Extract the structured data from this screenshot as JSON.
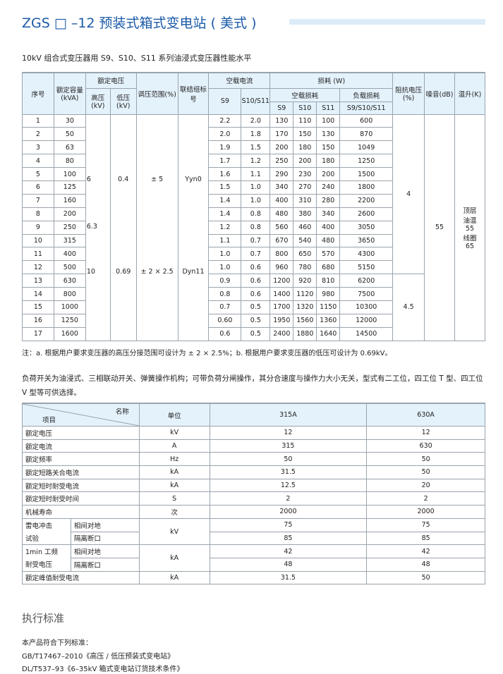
{
  "title": "ZGS □ –12 预装式箱式变电站 ( 美式 )",
  "subtitle": "10kV 组合式变压器用 S9、S10、S11 系列油浸式变压器性能水平",
  "table1": {
    "headers": {
      "no": "序号",
      "capacity": "额定容量(kVA)",
      "rated_voltage": "额定电压",
      "hv": "高压(kV)",
      "lv": "低压(kV)",
      "tap": "调压范围(%)",
      "conn": "联结组标号",
      "noload_current": "空载电流",
      "s9": "S9",
      "s10s11": "S10/S11",
      "loss": "损耗 (W)",
      "noload_loss": "空载损耗",
      "load_loss": "负载损耗",
      "s10": "S10",
      "s11": "S11",
      "s9s10s11": "S9/S10/S11",
      "impedance": "阻抗电压(%)",
      "noise": "噪音(dB)",
      "temp": "温升(K)"
    },
    "rows": [
      [
        "1",
        "30",
        "2.2",
        "2.0",
        "130",
        "110",
        "100",
        "600"
      ],
      [
        "2",
        "50",
        "2.0",
        "1.8",
        "170",
        "150",
        "130",
        "870"
      ],
      [
        "3",
        "63",
        "1.9",
        "1.5",
        "200",
        "180",
        "150",
        "1049"
      ],
      [
        "4",
        "80",
        "1.7",
        "1.2",
        "250",
        "200",
        "180",
        "1250"
      ],
      [
        "5",
        "100",
        "1.6",
        "1.1",
        "290",
        "230",
        "200",
        "1500"
      ],
      [
        "6",
        "125",
        "1.5",
        "1.0",
        "340",
        "270",
        "240",
        "1800"
      ],
      [
        "7",
        "160",
        "1.4",
        "1.0",
        "400",
        "310",
        "280",
        "2200"
      ],
      [
        "8",
        "200",
        "1.4",
        "0.8",
        "480",
        "380",
        "340",
        "2600"
      ],
      [
        "9",
        "250",
        "1.2",
        "0.8",
        "560",
        "460",
        "400",
        "3050"
      ],
      [
        "10",
        "315",
        "1.1",
        "0.7",
        "670",
        "540",
        "480",
        "3650"
      ],
      [
        "11",
        "400",
        "1.0",
        "0.7",
        "800",
        "650",
        "570",
        "4300"
      ],
      [
        "12",
        "500",
        "1.0",
        "0.6",
        "960",
        "780",
        "680",
        "5150"
      ],
      [
        "13",
        "630",
        "0.9",
        "0.6",
        "1200",
        "920",
        "810",
        "6200"
      ],
      [
        "14",
        "800",
        "0.8",
        "0.6",
        "1400",
        "1120",
        "980",
        "7500"
      ],
      [
        "15",
        "1000",
        "0.7",
        "0.5",
        "1700",
        "1320",
        "1150",
        "10300"
      ],
      [
        "16",
        "1250",
        "0.60",
        "0.5",
        "1950",
        "1560",
        "1360",
        "12000"
      ],
      [
        "17",
        "1600",
        "0.6",
        "0.5",
        "2400",
        "1880",
        "1640",
        "14500"
      ]
    ],
    "hv_values": [
      "6",
      "6.3",
      "10"
    ],
    "lv_values": [
      "0.4",
      "0.69"
    ],
    "tap_values": [
      "± 5",
      "± 2 × 2.5"
    ],
    "conn_values": [
      "Yyn0",
      "Dyn11"
    ],
    "impedance_values": [
      "4",
      "4.5"
    ],
    "noise": "55",
    "temp_lines": [
      "顶层",
      "油温",
      "55",
      "线圈",
      "65"
    ]
  },
  "note": "注：a. 根据用户要求变压器的高压分接范围可设计为 ± 2 × 2.5%；b. 根据用户要求变压器的低压可设计为 0.69kV。",
  "paragraph": "负荷开关为油浸式、三相联动开关、弹簧操作机构；可带负荷分闸操作，其分合速度与操作力大小无关，型式有二工位，四工位 T 型、四工位 V 型等可供选择。",
  "table2": {
    "header": {
      "name": "名称",
      "item": "项目",
      "unit": "单位",
      "c1": "315A",
      "c2": "630A"
    },
    "rows": [
      [
        "额定电压",
        "kV",
        "12",
        "12"
      ],
      [
        "额定电流",
        "A",
        "315",
        "630"
      ],
      [
        "额定频率",
        "Hz",
        "50",
        "50"
      ],
      [
        "额定短路关合电流",
        "kA",
        "31.5",
        "50"
      ],
      [
        "额定短时耐受电流",
        "kA",
        "12.5",
        "20"
      ],
      [
        "额定短时耐受时间",
        "S",
        "2",
        "2"
      ],
      [
        "机械寿命",
        "次",
        "2000",
        "2000"
      ]
    ],
    "lightning": {
      "label1": "雷电冲击",
      "label2": "试验",
      "sub1": "相间对地",
      "sub2": "隔离断口",
      "unit": "kV",
      "v1": [
        "75",
        "75"
      ],
      "v2": [
        "85",
        "85"
      ]
    },
    "power_freq": {
      "label1": "1min 工频",
      "label2": "耐受电压",
      "sub1": "相间对地",
      "sub2": "隔离断口",
      "unit": "kA",
      "v1": [
        "42",
        "42"
      ],
      "v2": [
        "48",
        "48"
      ]
    },
    "peak": [
      "额定峰值耐受电流",
      "kA",
      "31.5",
      "50"
    ]
  },
  "standards": {
    "title": "执行标准",
    "intro": "本产品符合下列标准：",
    "items": [
      "GB/T17467–2010《高压 / 低压预装式变电站》",
      "DL/T537–93《6–35kV 箱式变电站订货技术条件》"
    ]
  }
}
